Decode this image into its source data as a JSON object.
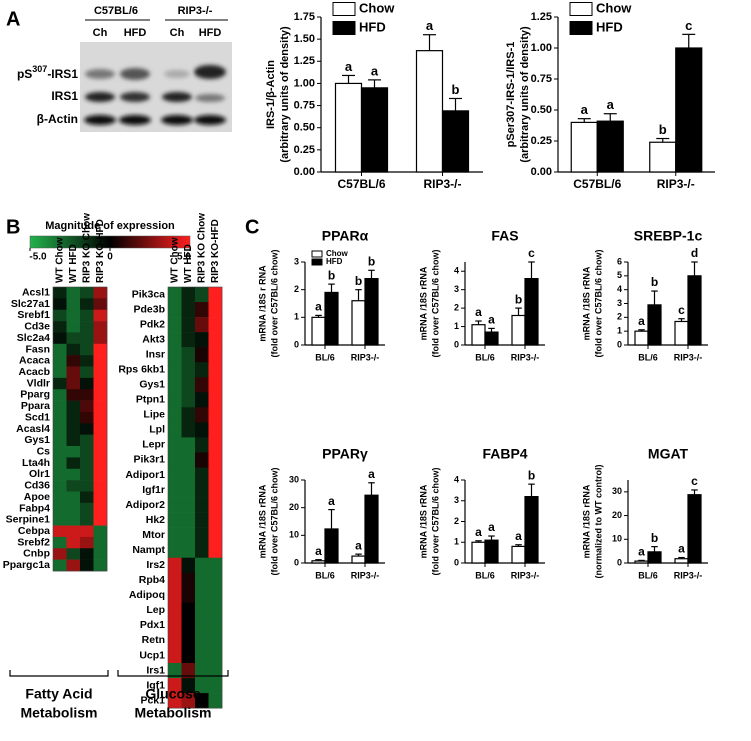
{
  "panel_labels": [
    "A",
    "B",
    "C"
  ],
  "blot": {
    "groups": [
      "C57BL/6",
      "RIP3-/-"
    ],
    "lanes": [
      "Ch",
      "HFD",
      "Ch",
      "HFD"
    ],
    "rows": [
      {
        "prefix": "pS",
        "sup": "307",
        "suffix": "-IRS1"
      },
      "IRS1",
      "β-Actin"
    ]
  },
  "chart_data": [
    {
      "type": "bar",
      "ylabel": [
        "IRS-1/β-Actin",
        "(arbitrary units of density)"
      ],
      "categories": [
        "C57BL/6",
        "RIP3-/-"
      ],
      "series": [
        {
          "name": "Chow",
          "color": "#ffffff",
          "values": [
            1.0,
            1.37
          ],
          "errors": [
            0.09,
            0.18
          ],
          "letters": [
            "a",
            "a"
          ]
        },
        {
          "name": "HFD",
          "color": "#000000",
          "values": [
            0.95,
            0.69
          ],
          "errors": [
            0.09,
            0.14
          ],
          "letters": [
            "a",
            "b"
          ]
        }
      ],
      "ylim": [
        0,
        1.75
      ],
      "yticks": [
        {
          "value": 0,
          "label": "0.00"
        },
        {
          "value": 0.25,
          "label": "0.25"
        },
        {
          "value": 0.5,
          "label": "0.50"
        },
        {
          "value": 0.75,
          "label": "0.75"
        },
        {
          "value": 1,
          "label": "1.00"
        },
        {
          "value": 1.25,
          "label": "1.25"
        },
        {
          "value": 1.5,
          "label": "1.50"
        },
        {
          "value": 1.75,
          "label": "1.75"
        }
      ],
      "legend": "top-left"
    },
    {
      "type": "bar",
      "ylabel": [
        "pSer307-IRS-1/IRS-1",
        "(arbitrary units of density)"
      ],
      "categories": [
        "C57BL/6",
        "RIP3-/-"
      ],
      "series": [
        {
          "name": "Chow",
          "color": "#ffffff",
          "values": [
            0.4,
            0.24
          ],
          "errors": [
            0.03,
            0.03
          ],
          "letters": [
            "a",
            "b"
          ]
        },
        {
          "name": "HFD",
          "color": "#000000",
          "values": [
            0.41,
            1.0
          ],
          "errors": [
            0.06,
            0.11
          ],
          "letters": [
            "a",
            "c"
          ]
        }
      ],
      "ylim": [
        0,
        1.25
      ],
      "yticks": [
        {
          "value": 0,
          "label": "0.00"
        },
        {
          "value": 0.25,
          "label": "0.25"
        },
        {
          "value": 0.5,
          "label": "0.50"
        },
        {
          "value": 0.75,
          "label": "0.75"
        },
        {
          "value": 1,
          "label": "1.00"
        },
        {
          "value": 1.25,
          "label": "1.25"
        }
      ],
      "legend": "top-left"
    },
    {
      "type": "heatmap",
      "title": "Magnitude of expression",
      "colorbar": {
        "range": [
          -5,
          5
        ],
        "colors": [
          "#22b24c",
          "#000000",
          "#ff1f1f"
        ],
        "ticks": [
          {
            "value": -5,
            "label": "-5.0"
          },
          0,
          {
            "value": 5,
            "label": "5.0"
          }
        ]
      },
      "panels": [
        {
          "label": [
            "Fatty Acid",
            "Metabolism"
          ],
          "columns": [
            "WT Chow",
            "WT HFD",
            "RIP3 KO Chow",
            "RIP3 KO-HFD"
          ],
          "rows": [
            "Acsl1",
            "Slc27a1",
            "Srebf1",
            "Cd3e",
            "Slc2a4",
            "Fasn",
            "Acaca",
            "Acacb",
            "Vldlr",
            "Pparg",
            "Ppara",
            "Scd1",
            "Acasl4",
            "Gys1",
            "Cs",
            "Lta4h",
            "Olr1",
            "Cd36",
            "Apoe",
            "Fabp4",
            "Serpine1",
            "Cebpa",
            "Srebf2",
            "Cnbp",
            "Ppargc1a"
          ],
          "values": [
            [
              -1,
              -3,
              -2,
              3
            ],
            [
              -0.5,
              -3,
              -1,
              2
            ],
            [
              -2,
              -3,
              -2,
              4
            ],
            [
              -1,
              -3,
              -2,
              3
            ],
            [
              -0.5,
              -2,
              -2,
              3
            ],
            [
              -3,
              -1,
              -2,
              5
            ],
            [
              -3,
              1,
              -1,
              5
            ],
            [
              -3,
              2,
              -2,
              5
            ],
            [
              -1,
              2,
              -0.5,
              5
            ],
            [
              -3,
              1,
              1,
              5
            ],
            [
              -3,
              -1,
              1.5,
              5
            ],
            [
              -3,
              -1,
              1,
              5
            ],
            [
              -3,
              -1,
              -0.5,
              5
            ],
            [
              -3,
              -1,
              -2,
              5
            ],
            [
              -3,
              -3,
              -2,
              5
            ],
            [
              -3,
              -1,
              -2,
              5
            ],
            [
              -3,
              -3,
              -2,
              5
            ],
            [
              -3,
              -2,
              -2,
              5
            ],
            [
              -3,
              -3,
              -1,
              5
            ],
            [
              -3,
              -3,
              -2,
              5
            ],
            [
              -3,
              -3,
              -2,
              5
            ],
            [
              4,
              4,
              4,
              -3
            ],
            [
              -3,
              4,
              3,
              -3
            ],
            [
              3,
              -2,
              -0.5,
              -3
            ],
            [
              -3,
              3,
              -0.5,
              -3
            ]
          ]
        },
        {
          "label": [
            "Glucose",
            "Metabolism"
          ],
          "columns": [
            "WT Chow",
            "WT HFD",
            "RIP3 KO Chow",
            "RIP3 KO-HFD"
          ],
          "rows": [
            "Pik3ca",
            "Pde3b",
            "Pdk2",
            "Akt3",
            "Insr",
            "Rps 6kb1",
            "Gys1",
            "Ptpn1",
            "Lipe",
            "Lpl",
            "Lepr",
            "Pik3r1",
            "Adipor1",
            "Igf1r",
            "Adipor2",
            "Hk2",
            "Mtor",
            "Nampt",
            "Irs2",
            "Rpb4",
            "Adipoq",
            "Lep",
            "Pdx1",
            "Retn",
            "Ucp1",
            "Irs1",
            "Igf1",
            "Pck1"
          ],
          "values": [
            [
              -3,
              -1,
              -2,
              5
            ],
            [
              -3,
              -1,
              1,
              5
            ],
            [
              -3,
              -1,
              2,
              5
            ],
            [
              -3,
              -1,
              -0.5,
              5
            ],
            [
              -3,
              -2,
              0.5,
              5
            ],
            [
              -3,
              -2,
              -1,
              5
            ],
            [
              -3,
              -2,
              1,
              5
            ],
            [
              -3,
              -2,
              -0.5,
              5
            ],
            [
              -3,
              -1,
              1,
              5
            ],
            [
              -3,
              -1,
              -0.5,
              5
            ],
            [
              -3,
              -3,
              -1,
              5
            ],
            [
              -3,
              -3,
              0.5,
              5
            ],
            [
              -3,
              -3,
              -1,
              5
            ],
            [
              -3,
              -3,
              -1,
              5
            ],
            [
              -3,
              -3,
              -1,
              5
            ],
            [
              -3,
              -3,
              -1,
              5
            ],
            [
              -3,
              -3,
              -1,
              5
            ],
            [
              -3,
              -3,
              -1,
              5
            ],
            [
              4,
              -0.5,
              -3,
              -3
            ],
            [
              4,
              0.5,
              -3,
              -3
            ],
            [
              4,
              0.5,
              -3,
              -3
            ],
            [
              4,
              0,
              -3,
              -3
            ],
            [
              4,
              0,
              -3,
              -3
            ],
            [
              4,
              0,
              -3,
              -3
            ],
            [
              4,
              0,
              -3,
              -3
            ],
            [
              -3,
              2,
              -3,
              -3
            ],
            [
              4,
              -0.5,
              -3,
              -3
            ],
            [
              4,
              3,
              0,
              -3
            ]
          ]
        }
      ]
    },
    {
      "type": "bar",
      "title": "PPARα",
      "ylabel": [
        "mRNA /18S r RNA",
        "(fold over C57BL/6 chow)"
      ],
      "categories": [
        "BL/6",
        "RIP3-/-"
      ],
      "series": [
        {
          "name": "Chow",
          "color": "#ffffff",
          "values": [
            1.0,
            1.6
          ],
          "errors": [
            0.07,
            0.4
          ],
          "letters": [
            "a",
            "b"
          ]
        },
        {
          "name": "HFD",
          "color": "#000000",
          "values": [
            1.9,
            2.4
          ],
          "errors": [
            0.3,
            0.3
          ],
          "letters": [
            "b",
            "b"
          ]
        }
      ],
      "ylim": [
        0,
        3
      ],
      "yticks": [
        0,
        1,
        2,
        3
      ],
      "legend": "top-left"
    },
    {
      "type": "bar",
      "title": "FAS",
      "ylabel": [
        "mRNA /18S rRNA",
        "(fold over C57BL/6 chow)"
      ],
      "categories": [
        "BL/6",
        "RIP3-/-"
      ],
      "series": [
        {
          "color": "#ffffff",
          "values": [
            1.1,
            1.6
          ],
          "errors": [
            0.2,
            0.4
          ],
          "letters": [
            "a",
            "b"
          ]
        },
        {
          "color": "#000000",
          "values": [
            0.7,
            3.6
          ],
          "errors": [
            0.2,
            0.9
          ],
          "letters": [
            "a",
            "c"
          ]
        }
      ],
      "ylim": [
        0,
        4.5
      ],
      "yticks": [
        0,
        1,
        2,
        3,
        4
      ]
    },
    {
      "type": "bar",
      "title": "SREBP-1c",
      "ylabel": [
        "mRNA /18S rRNA",
        "(fold over C57BL/6 chow)"
      ],
      "categories": [
        "BL/6",
        "RIP3-/-"
      ],
      "series": [
        {
          "color": "#ffffff",
          "values": [
            1.0,
            1.7
          ],
          "errors": [
            0.1,
            0.2
          ],
          "letters": [
            "a",
            "c"
          ]
        },
        {
          "color": "#000000",
          "values": [
            2.9,
            5.0
          ],
          "errors": [
            1.0,
            1.0
          ],
          "letters": [
            "b",
            "d"
          ]
        }
      ],
      "ylim": [
        0,
        6
      ],
      "yticks": [
        0,
        1,
        2,
        3,
        4,
        5,
        6
      ]
    },
    {
      "type": "bar",
      "title": "PPARγ",
      "ylabel": [
        "mRNA /18S rRNA",
        "(fold over C57BL/6 chow)"
      ],
      "categories": [
        "BL/6",
        "RIP3-/-"
      ],
      "series": [
        {
          "color": "#ffffff",
          "values": [
            0.8,
            2.5
          ],
          "errors": [
            0.4,
            0.7
          ],
          "letters": [
            "a",
            "a"
          ]
        },
        {
          "color": "#000000",
          "values": [
            12.3,
            24.5
          ],
          "errors": [
            7,
            4.5
          ],
          "letters": [
            "a",
            "a"
          ]
        }
      ],
      "ylim": [
        0,
        30
      ],
      "yticks": [
        0,
        10,
        20,
        30
      ]
    },
    {
      "type": "bar",
      "title": "FABP4",
      "ylabel": [
        "mRNA /18S rRNA",
        "(fold over C57BL/6 chow)"
      ],
      "categories": [
        "BL/6",
        "RIP3-/-"
      ],
      "series": [
        {
          "color": "#ffffff",
          "values": [
            1.0,
            0.8
          ],
          "errors": [
            0.07,
            0.08
          ],
          "letters": [
            "a",
            "a"
          ]
        },
        {
          "color": "#000000",
          "values": [
            1.1,
            3.2
          ],
          "errors": [
            0.2,
            0.6
          ],
          "letters": [
            "a",
            "b"
          ]
        }
      ],
      "ylim": [
        0,
        4
      ],
      "yticks": [
        0,
        1,
        2,
        3,
        4
      ]
    },
    {
      "type": "bar",
      "title": "MGAT",
      "ylabel": [
        "mRNA /18S rRNA",
        "(normalized to WT control)"
      ],
      "categories": [
        "BL/6",
        "RIP3-/-"
      ],
      "series": [
        {
          "color": "#ffffff",
          "values": [
            0.8,
            1.8
          ],
          "errors": [
            0.3,
            0.5
          ],
          "letters": [
            "a",
            "a"
          ]
        },
        {
          "color": "#000000",
          "values": [
            4.7,
            28.8
          ],
          "errors": [
            2.2,
            2.0
          ],
          "letters": [
            "b",
            "c"
          ]
        }
      ],
      "ylim": [
        0,
        35
      ],
      "yticks": [
        0,
        10,
        20,
        30
      ]
    }
  ]
}
